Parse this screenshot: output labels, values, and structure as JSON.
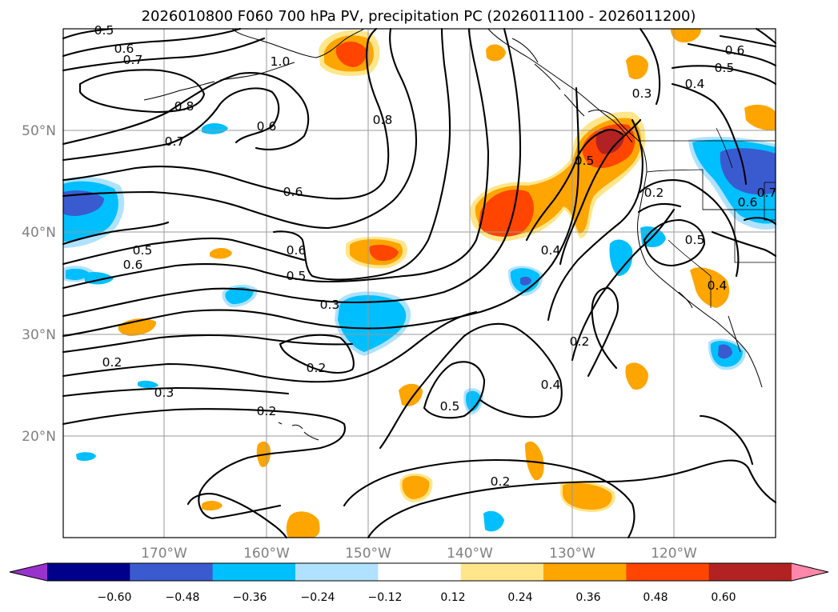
{
  "title": "2026010800 F060 700 hPa PV, precipitation PC (2026011100 - 2026011200)",
  "lat_labels": [
    "50°N",
    "40°N",
    "30°N",
    "20°N"
  ],
  "lon_labels": [
    "170°W",
    "160°W",
    "150°W",
    "140°W",
    "130°W",
    "120°W"
  ],
  "colorbar": {
    "ticks": [
      "−0.60",
      "−0.48",
      "−0.36",
      "−0.24",
      "−0.12",
      "0.12",
      "0.24",
      "0.36",
      "0.48",
      "0.60"
    ],
    "colors": [
      "#9932cc",
      "#00008b",
      "#3a5bd0",
      "#00bfff",
      "#b0e2ff",
      "#ffffff",
      "#ffe68a",
      "#ffa500",
      "#ff4500",
      "#b22222",
      "#ff88aa"
    ]
  },
  "contour_labels": [
    {
      "text": "0.5"
    },
    {
      "text": "0.6"
    },
    {
      "text": "0.7"
    },
    {
      "text": "1.0"
    },
    {
      "text": "0.8"
    },
    {
      "text": "0.7"
    },
    {
      "text": "0.6"
    },
    {
      "text": "0.8"
    },
    {
      "text": "0.6"
    },
    {
      "text": "0.6"
    },
    {
      "text": "0.5"
    },
    {
      "text": "0.6"
    },
    {
      "text": "0.5"
    },
    {
      "text": "0.3"
    },
    {
      "text": "0.2"
    },
    {
      "text": "0.2"
    },
    {
      "text": "0.3"
    },
    {
      "text": "0.2"
    },
    {
      "text": "0.4"
    },
    {
      "text": "0.5"
    },
    {
      "text": "0.2"
    },
    {
      "text": "0.4"
    },
    {
      "text": "0.5"
    },
    {
      "text": "0.2"
    },
    {
      "text": "0.6"
    },
    {
      "text": "0.5"
    },
    {
      "text": "0.4"
    },
    {
      "text": "0.3"
    },
    {
      "text": "0.5"
    },
    {
      "text": "0.4"
    },
    {
      "text": "0.6"
    },
    {
      "text": "0.7"
    },
    {
      "text": "0.2"
    }
  ]
}
